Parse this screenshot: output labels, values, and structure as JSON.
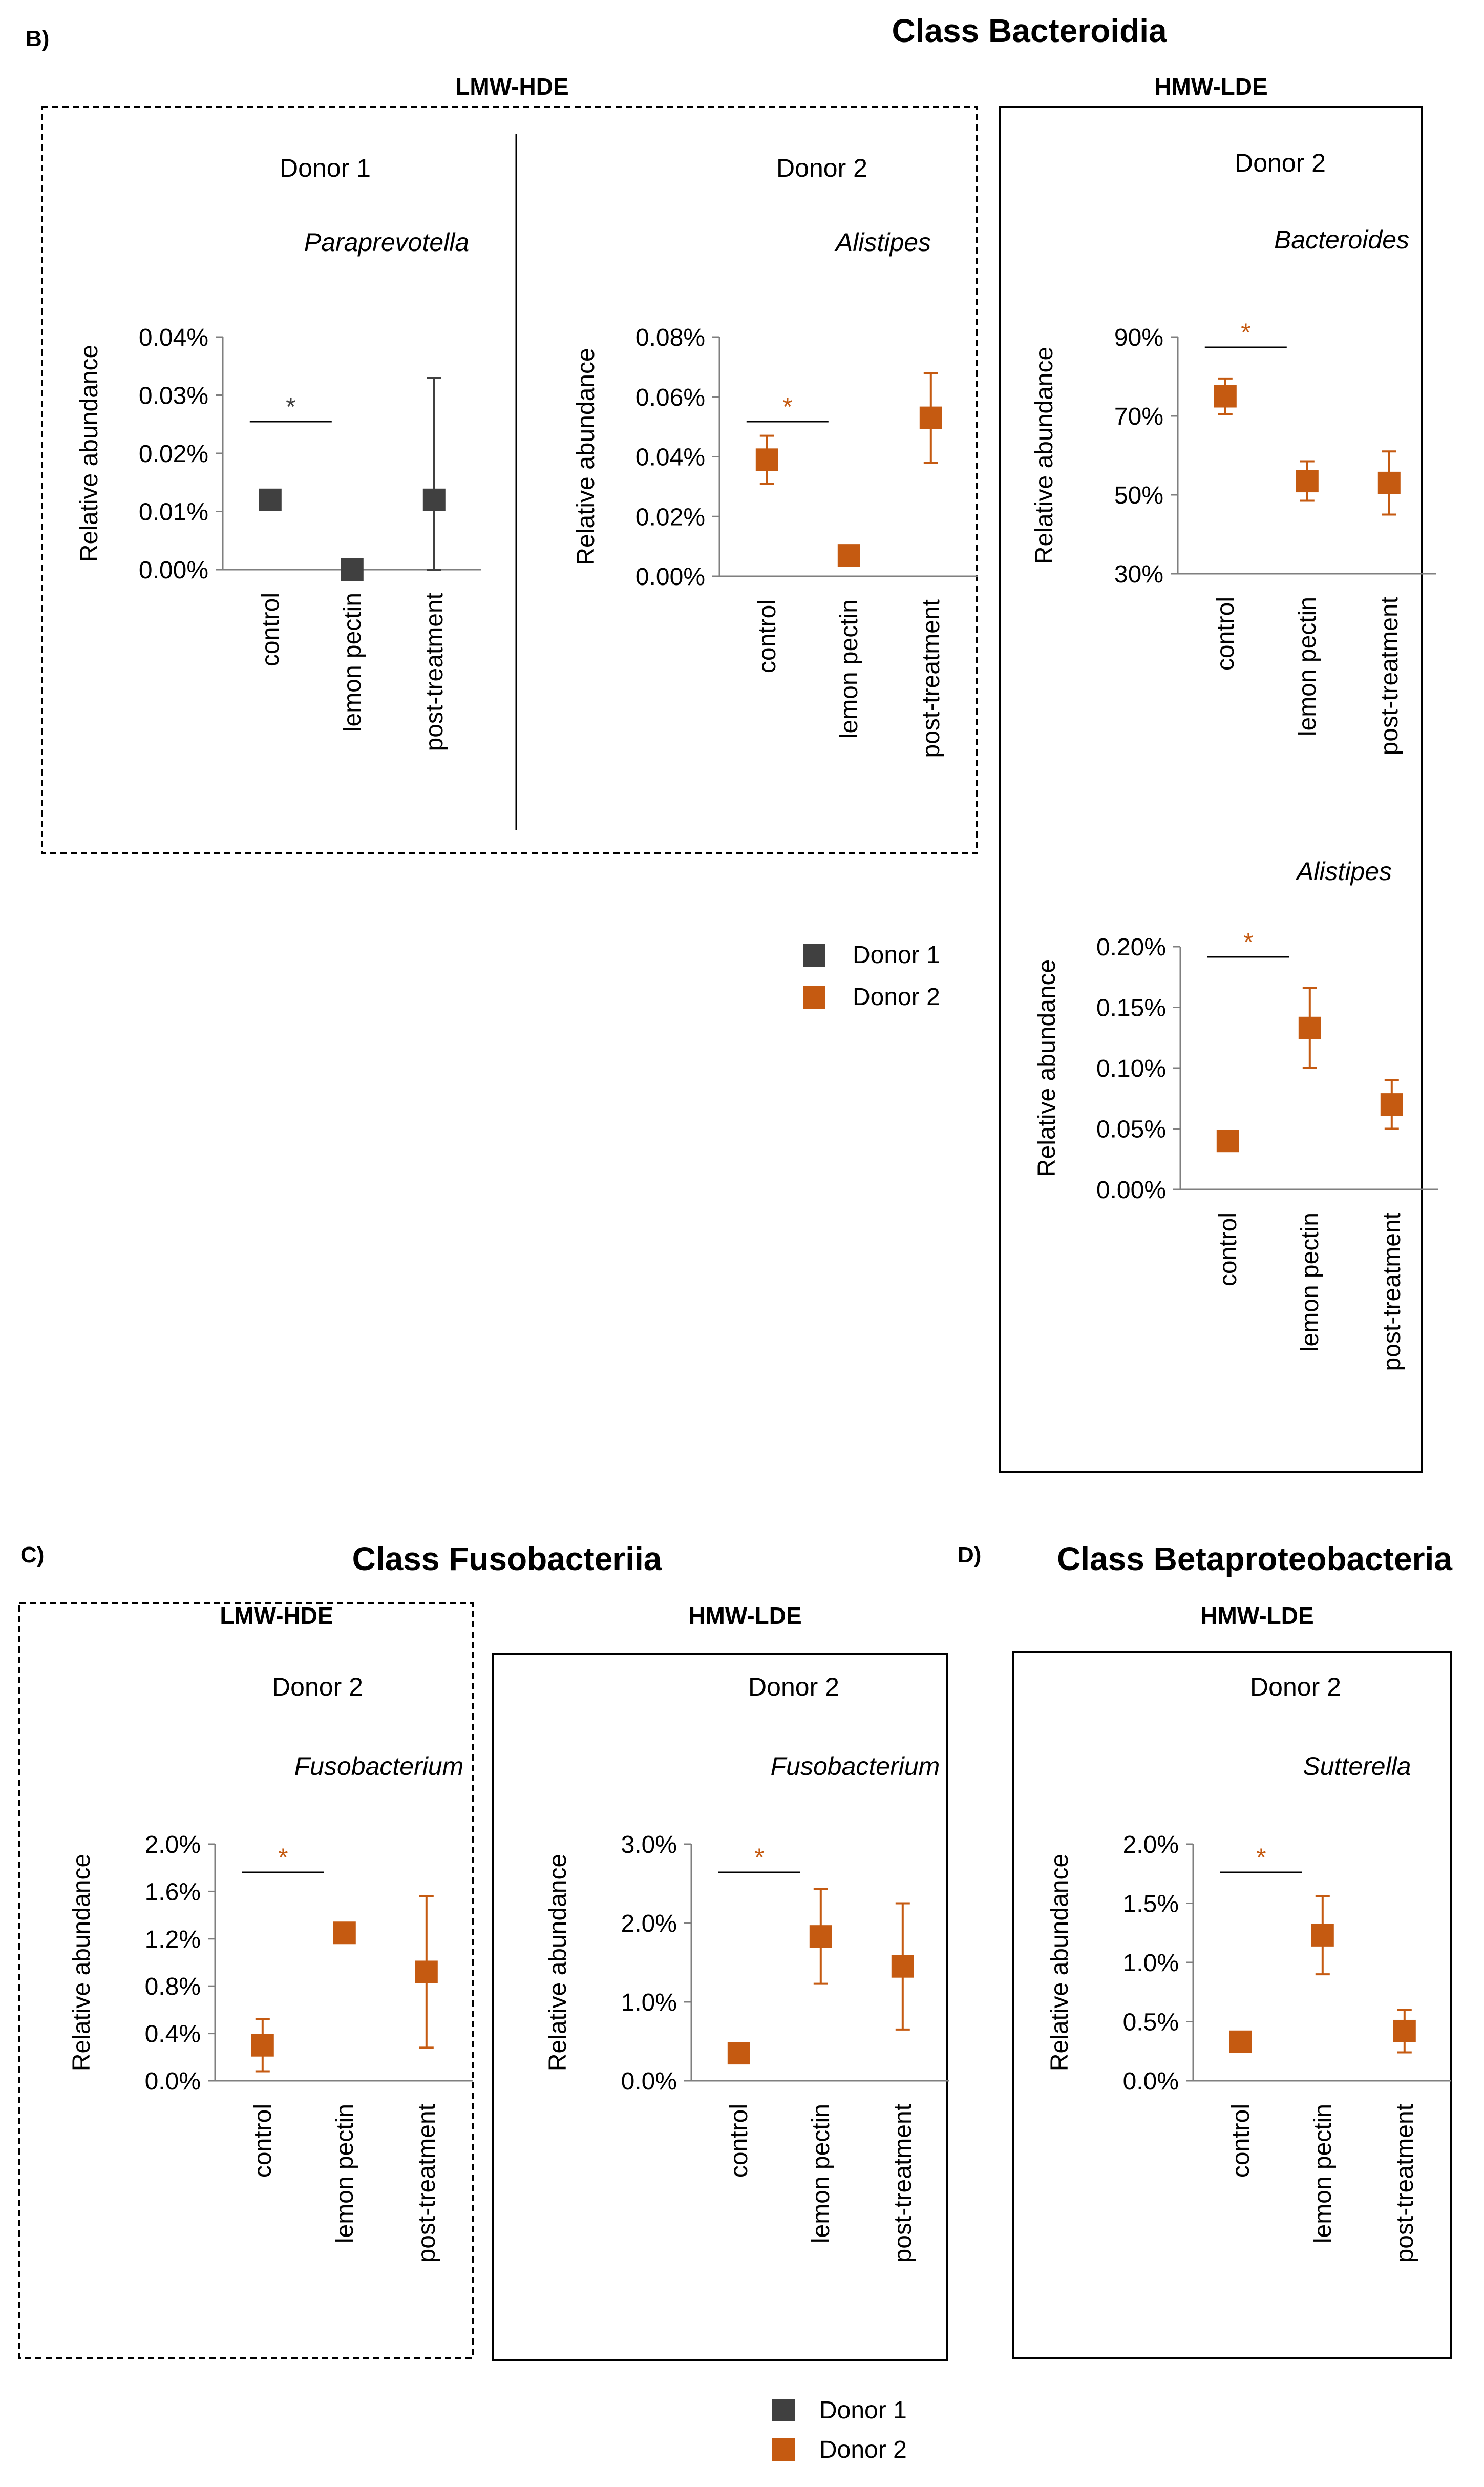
{
  "colors": {
    "donor1": "#404040",
    "donor2": "#C55A11",
    "axis": "#7f7f7f",
    "text": "#000000"
  },
  "sections": [
    {
      "label": "B)",
      "title": "Class Bacteroidia"
    },
    {
      "label": "C)",
      "title": "Class Fusobacteriia"
    },
    {
      "label": "D)",
      "title": "Class Betaproteobacteria"
    }
  ],
  "groups": [
    "LMW-HDE",
    "HMW-LDE",
    "LMW-HDE",
    "HMW-LDE",
    "HMW-LDE"
  ],
  "legends": [
    {
      "items": [
        {
          "label": "Donor 1",
          "color": "#404040"
        },
        {
          "label": "Donor 2",
          "color": "#C55A11"
        }
      ]
    },
    {
      "items": [
        {
          "label": "Donor 1",
          "color": "#404040"
        },
        {
          "label": "Donor 2",
          "color": "#C55A11"
        }
      ]
    }
  ],
  "chart_data": [
    {
      "type": "scatter",
      "panel": "B",
      "group": "LMW-HDE",
      "donor": "Donor 1",
      "genus": "Paraprevotella",
      "color": "#404040",
      "ylabel": "Relative abundance",
      "categories": [
        "control",
        "lemon pectin",
        "post-treatment"
      ],
      "values": [
        0.012,
        0.0,
        0.012
      ],
      "errors": [
        null,
        null,
        0.021
      ],
      "ylim": [
        0,
        0.04
      ],
      "yticks": [
        0,
        0.01,
        0.02,
        0.03,
        0.04
      ],
      "yticklabels": [
        "0.00%",
        "0.01%",
        "0.02%",
        "0.03%",
        "0.04%"
      ],
      "significance": {
        "between": [
          0,
          1
        ],
        "symbol": "*"
      }
    },
    {
      "type": "scatter",
      "panel": "B",
      "group": "LMW-HDE",
      "donor": "Donor 2",
      "genus": "Alistipes",
      "color": "#C55A11",
      "ylabel": "Relative abundance",
      "categories": [
        "control",
        "lemon pectin",
        "post-treatment"
      ],
      "values": [
        0.039,
        0.007,
        0.053
      ],
      "errors": [
        0.008,
        null,
        0.015
      ],
      "ylim": [
        0,
        0.08
      ],
      "yticks": [
        0,
        0.02,
        0.04,
        0.06,
        0.08
      ],
      "yticklabels": [
        "0.00%",
        "0.02%",
        "0.04%",
        "0.06%",
        "0.08%"
      ],
      "significance": {
        "between": [
          0,
          1
        ],
        "symbol": "*"
      }
    },
    {
      "type": "scatter",
      "panel": "B",
      "group": "HMW-LDE",
      "donor": "Donor 2",
      "genus": "Bacteroides",
      "color": "#C55A11",
      "ylabel": "Relative abundance",
      "categories": [
        "control",
        "lemon pectin",
        "post-treatment"
      ],
      "values": [
        75,
        53.5,
        53
      ],
      "errors": [
        4.5,
        5,
        8
      ],
      "ylim": [
        30,
        90
      ],
      "yticks": [
        30,
        50,
        70,
        90
      ],
      "yticklabels": [
        "30%",
        "50%",
        "70%",
        "90%"
      ],
      "significance": {
        "between": [
          0,
          1
        ],
        "symbol": "*"
      }
    },
    {
      "type": "scatter",
      "panel": "B",
      "group": "HMW-LDE",
      "donor": "Donor 2",
      "genus": "Alistipes",
      "color": "#C55A11",
      "ylabel": "Relative abundance",
      "categories": [
        "control",
        "lemon pectin",
        "post-treatment"
      ],
      "values": [
        0.04,
        0.133,
        0.07
      ],
      "errors": [
        null,
        0.033,
        0.02
      ],
      "ylim": [
        0,
        0.2
      ],
      "yticks": [
        0,
        0.05,
        0.1,
        0.15,
        0.2
      ],
      "yticklabels": [
        "0.00%",
        "0.05%",
        "0.10%",
        "0.15%",
        "0.20%"
      ],
      "significance": {
        "between": [
          0,
          1
        ],
        "symbol": "*"
      }
    },
    {
      "type": "scatter",
      "panel": "C",
      "group": "LMW-HDE",
      "donor": "Donor 2",
      "genus": "Fusobacterium",
      "color": "#C55A11",
      "ylabel": "Relative abundance",
      "categories": [
        "control",
        "lemon pectin",
        "post-treatment"
      ],
      "values": [
        0.3,
        1.25,
        0.92
      ],
      "errors": [
        0.22,
        0.08,
        0.64
      ],
      "ylim": [
        0,
        2
      ],
      "yticks": [
        0,
        0.4,
        0.8,
        1.2,
        1.6,
        2
      ],
      "yticklabels": [
        "0.0%",
        "0.4%",
        "0.8%",
        "1.2%",
        "1.6%",
        "2.0%"
      ],
      "significance": {
        "between": [
          0,
          1
        ],
        "symbol": "*"
      }
    },
    {
      "type": "scatter",
      "panel": "C",
      "group": "HMW-LDE",
      "donor": "Donor 2",
      "genus": "Fusobacterium",
      "color": "#C55A11",
      "ylabel": "Relative abundance",
      "categories": [
        "control",
        "lemon pectin",
        "post-treatment"
      ],
      "values": [
        0.35,
        1.83,
        1.45
      ],
      "errors": [
        0.1,
        0.6,
        0.8
      ],
      "ylim": [
        0,
        3
      ],
      "yticks": [
        0,
        1,
        2,
        3
      ],
      "yticklabels": [
        "0.0%",
        "1.0%",
        "2.0%",
        "3.0%"
      ],
      "significance": {
        "between": [
          0,
          1
        ],
        "symbol": "*"
      }
    },
    {
      "type": "scatter",
      "panel": "D",
      "group": "HMW-LDE",
      "donor": "Donor 2",
      "genus": "Sutterella",
      "color": "#C55A11",
      "ylabel": "Relative abundance",
      "categories": [
        "control",
        "lemon pectin",
        "post-treatment"
      ],
      "values": [
        0.33,
        1.23,
        0.42
      ],
      "errors": [
        null,
        0.33,
        0.18
      ],
      "ylim": [
        0,
        2
      ],
      "yticks": [
        0,
        0.5,
        1,
        1.5,
        2
      ],
      "yticklabels": [
        "0.0%",
        "0.5%",
        "1.0%",
        "1.5%",
        "2.0%"
      ],
      "significance": {
        "between": [
          0,
          1
        ],
        "symbol": "*"
      }
    }
  ]
}
